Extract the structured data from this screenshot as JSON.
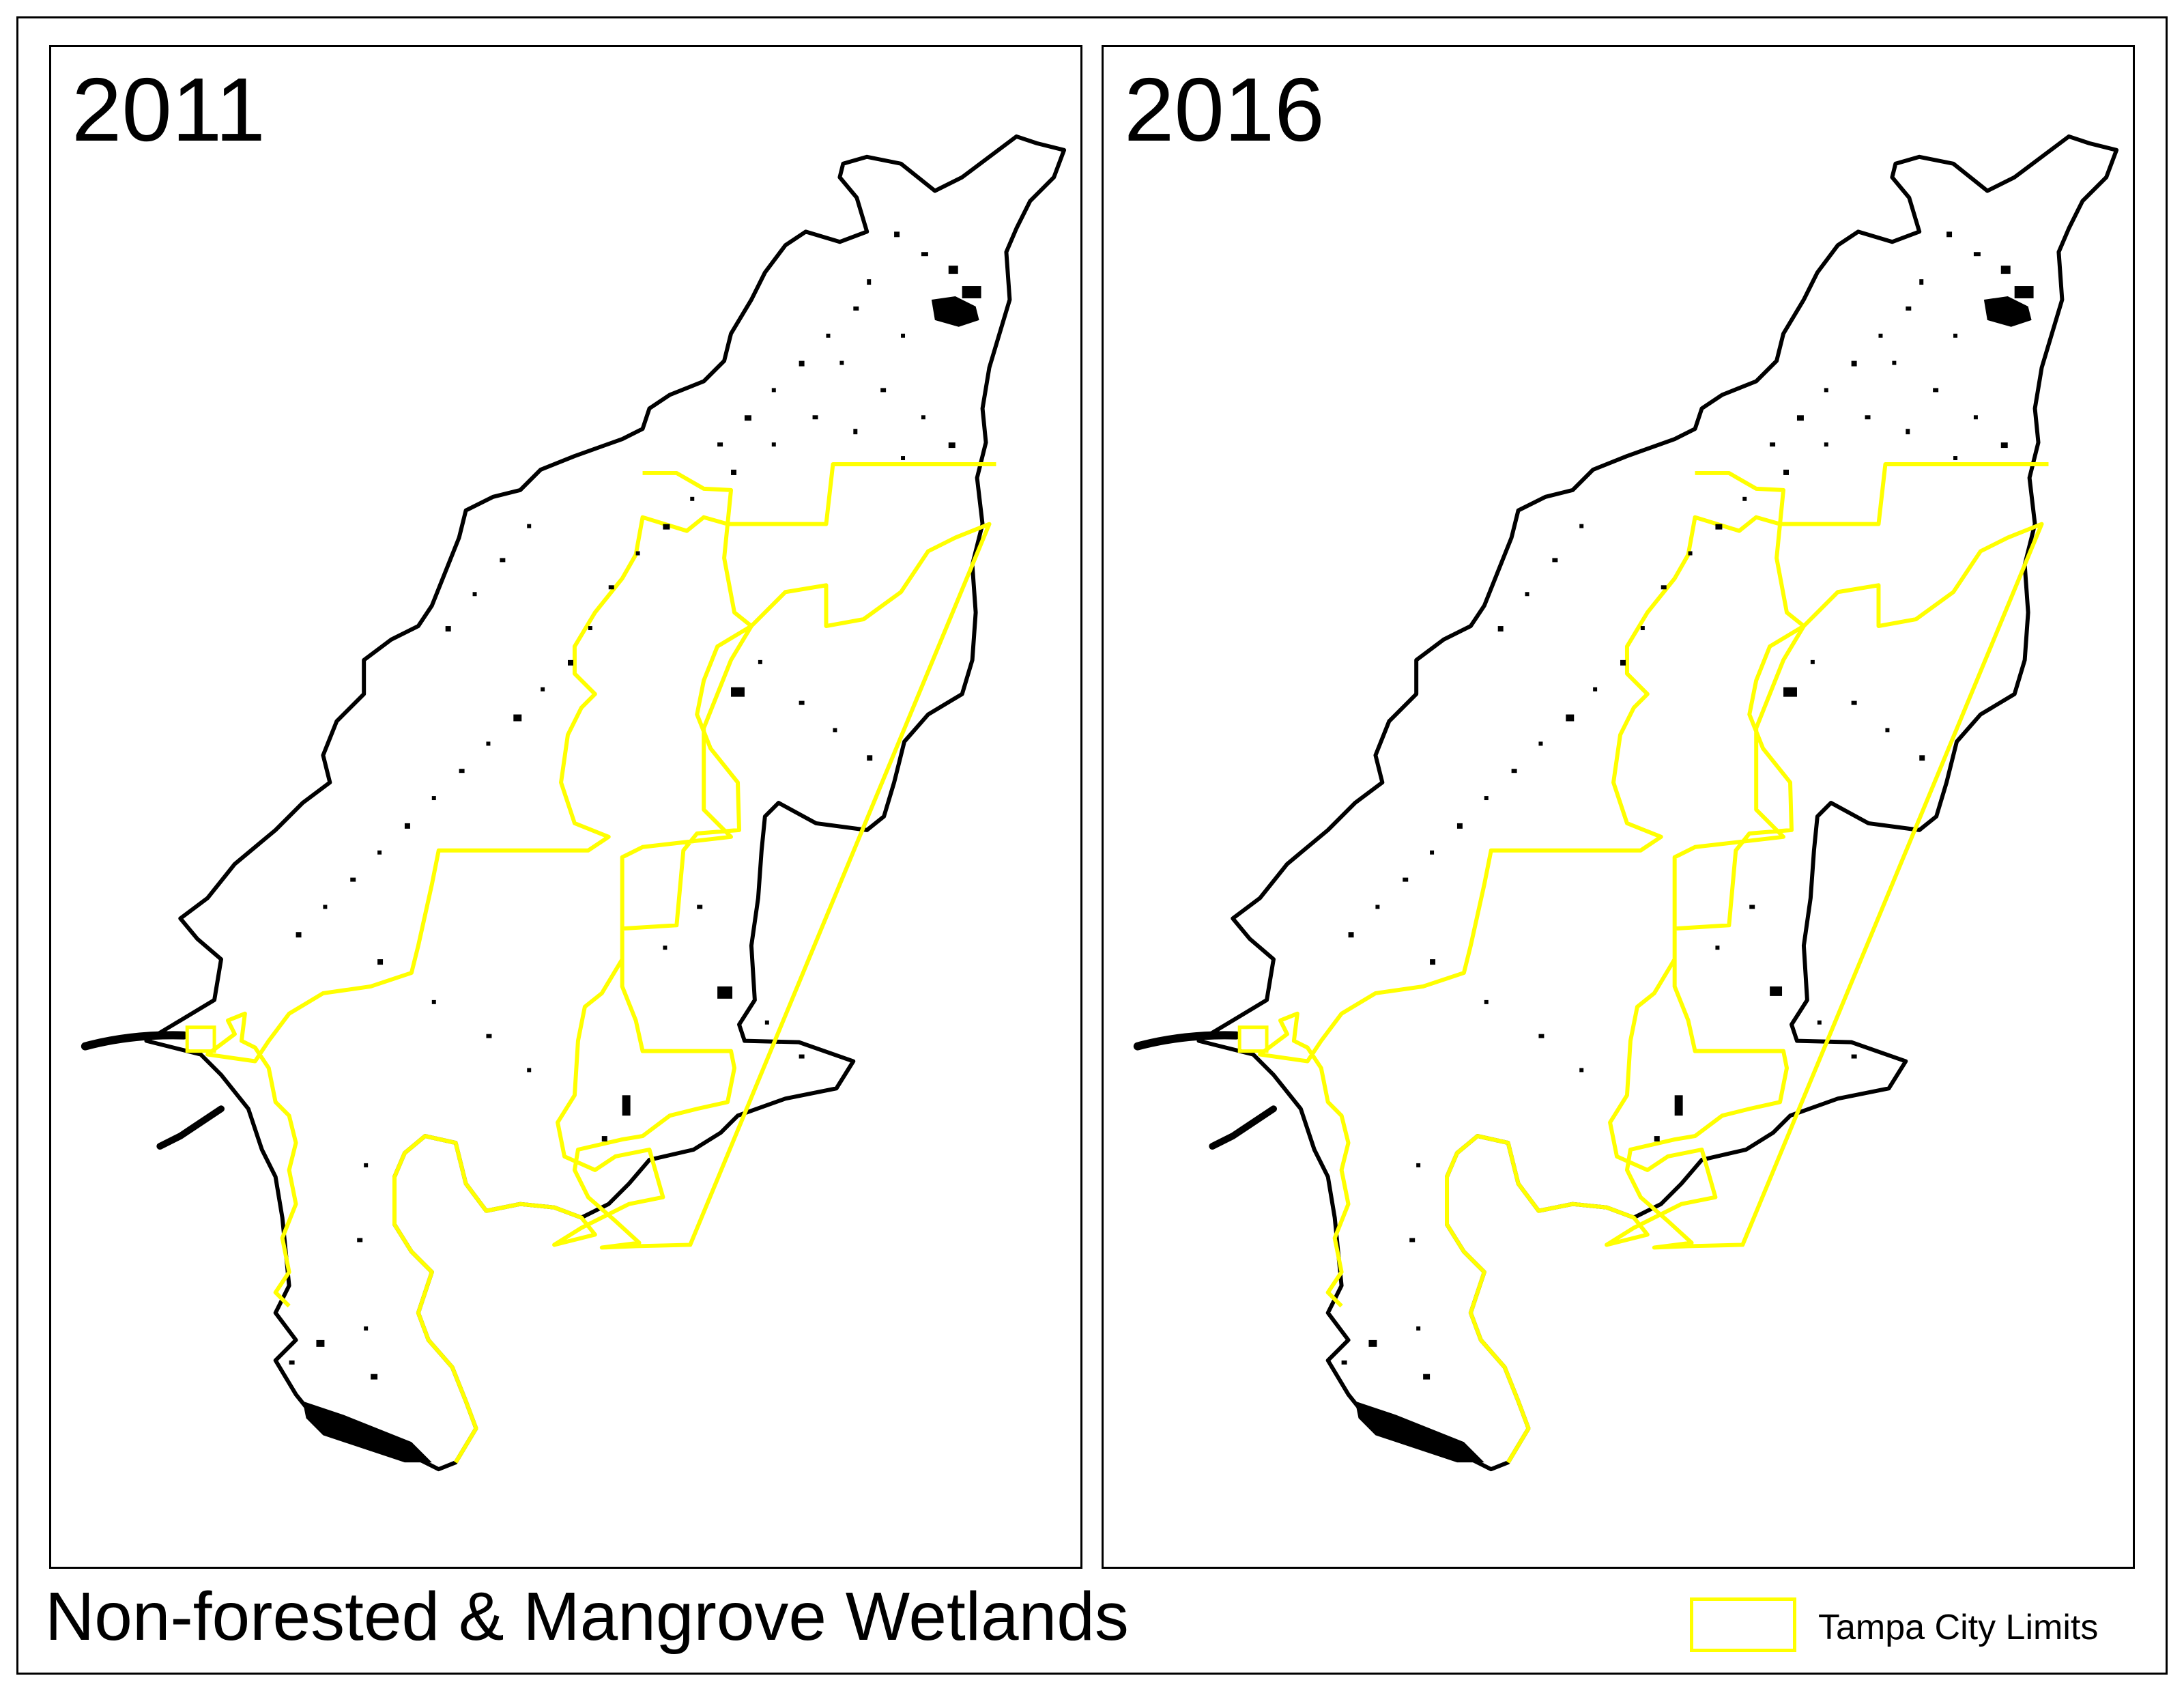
{
  "panels": [
    {
      "year": "2011"
    },
    {
      "year": "2016"
    }
  ],
  "title": "Non-forested & Mangrove Wetlands",
  "legend": {
    "label": "Tampa City Limits"
  },
  "colors": {
    "city_limits": "#ffff00",
    "county_outline": "#000000",
    "wetlands": "#000000",
    "background": "#ffffff"
  }
}
